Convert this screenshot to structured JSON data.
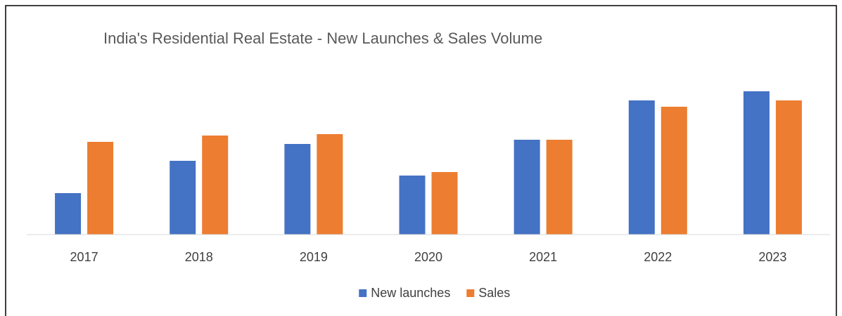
{
  "chart_data": {
    "type": "bar",
    "title": "India's Residential Real Estate - New Launches & Sales Volume",
    "categories": [
      "2017",
      "2018",
      "2019",
      "2020",
      "2021",
      "2022",
      "2023"
    ],
    "series": [
      {
        "name": "New launches",
        "color": "#4472c4",
        "values": [
          59,
          105,
          129,
          84,
          135,
          191,
          204
        ]
      },
      {
        "name": "Sales",
        "color": "#ed7d31",
        "values": [
          132,
          141,
          143,
          89,
          135,
          182,
          191
        ]
      }
    ],
    "ylim": [
      0,
      230
    ],
    "legend": "bottom"
  }
}
